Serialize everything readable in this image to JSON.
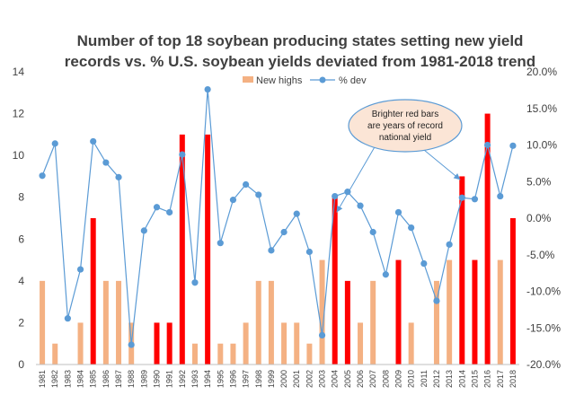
{
  "chart_data": {
    "type": "bar",
    "title_lines": [
      "Number of top 18 soybean producing states setting new yield",
      "records vs. % U.S. soybean yields deviated from 1981-2018 trend"
    ],
    "categories": [
      "1981",
      "1982",
      "1983",
      "1984",
      "1985",
      "1986",
      "1987",
      "1988",
      "1989",
      "1990",
      "1991",
      "1992",
      "1993",
      "1994",
      "1995",
      "1996",
      "1997",
      "1998",
      "1999",
      "2000",
      "2001",
      "2002",
      "2003",
      "2004",
      "2005",
      "2006",
      "2007",
      "2008",
      "2009",
      "2010",
      "2011",
      "2012",
      "2013",
      "2014",
      "2015",
      "2016",
      "2017",
      "2018"
    ],
    "series": [
      {
        "name": "New highs",
        "axis": "left",
        "kind": "bar",
        "values": [
          4,
          1,
          0,
          2,
          7,
          4,
          4,
          2,
          0,
          2,
          2,
          11,
          1,
          11,
          1,
          1,
          2,
          4,
          4,
          2,
          2,
          1,
          5,
          8,
          4,
          2,
          4,
          0,
          5,
          2,
          0,
          4,
          5,
          9,
          5,
          12,
          5,
          7
        ]
      },
      {
        "name": "% dev",
        "axis": "right",
        "kind": "line",
        "values": [
          5.8,
          10.2,
          -13.7,
          -7.0,
          10.5,
          7.6,
          5.6,
          -17.3,
          -1.7,
          1.5,
          0.8,
          8.7,
          -8.8,
          17.6,
          -3.4,
          2.5,
          4.6,
          3.2,
          -4.4,
          -1.9,
          0.6,
          -4.6,
          -16.0,
          3.0,
          3.6,
          1.7,
          -1.9,
          -7.7,
          0.8,
          -1.3,
          -6.2,
          -11.3,
          -3.6,
          2.8,
          2.6,
          10.0,
          3.0,
          9.9
        ]
      }
    ],
    "record_years": [
      "1985",
      "1990",
      "1991",
      "1992",
      "1994",
      "2004",
      "2005",
      "2009",
      "2014",
      "2015",
      "2016",
      "2018"
    ],
    "colors": {
      "bar_normal": "#f4b183",
      "bar_record": "#ff0000",
      "line": "#5b9bd5",
      "marker": "#5b9bd5",
      "annotation_fill": "#fbe5d6",
      "annotation_stroke": "#5b9bd5",
      "axis_text": "#404040",
      "gridline": "#d9d9d9"
    },
    "y_left": {
      "lim": [
        0,
        14
      ],
      "ticks": [
        "0",
        "2",
        "4",
        "6",
        "8",
        "10",
        "12",
        "14"
      ]
    },
    "y_right": {
      "lim": [
        -20,
        20
      ],
      "ticks": [
        "-20.0%",
        "-15.0%",
        "-10.0%",
        "-5.0%",
        "0.0%",
        "5.0%",
        "10.0%",
        "15.0%",
        "20.0%"
      ]
    },
    "legend": {
      "placement": "top-center",
      "items": [
        "New highs",
        "% dev"
      ]
    },
    "annotation": {
      "lines": [
        "Brighter red bars",
        "are years of record",
        "national yield"
      ],
      "arrow_targets": [
        "2004",
        "2014"
      ]
    },
    "grid": false
  }
}
